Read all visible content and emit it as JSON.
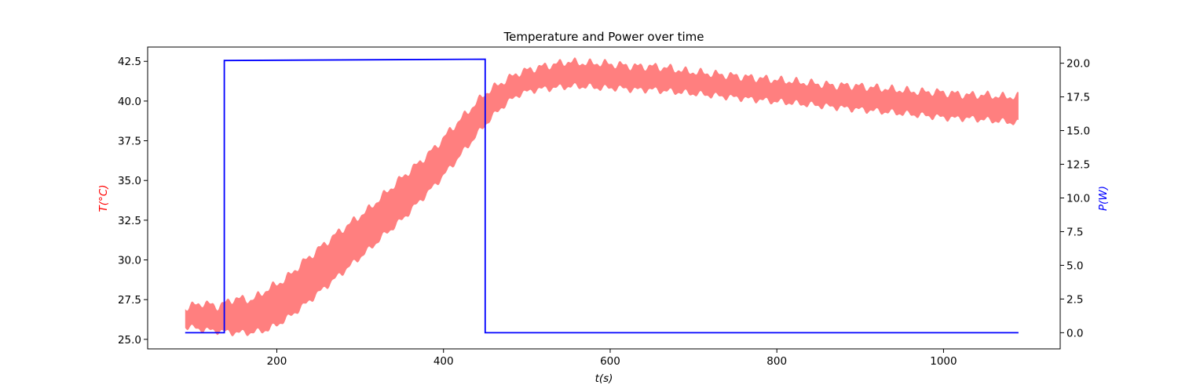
{
  "chart_data": {
    "type": "line",
    "title": "Temperature and Power over time",
    "xlabel": "t(s)",
    "ylabel_left": "T(°C)",
    "ylabel_right": "P(W)",
    "xlim": [
      45,
      1140
    ],
    "ylim_left": [
      24.4,
      43.4
    ],
    "ylim_right": [
      -1.2,
      21.2
    ],
    "x_ticks": [
      200,
      400,
      600,
      800,
      1000
    ],
    "y_left_ticks": [
      "25.0",
      "27.5",
      "30.0",
      "32.5",
      "35.0",
      "37.5",
      "40.0",
      "42.5"
    ],
    "y_right_ticks": [
      "0.0",
      "2.5",
      "5.0",
      "7.5",
      "10.0",
      "12.5",
      "15.0",
      "17.5",
      "20.0"
    ],
    "grid": false,
    "series": [
      {
        "name": "",
        "axis": "left",
        "color": "#ff7f7f",
        "style": "oscillating band",
        "x": [
          90,
          110,
          130,
          150,
          170,
          190,
          210,
          230,
          250,
          270,
          290,
          310,
          330,
          350,
          370,
          390,
          410,
          430,
          450,
          470,
          490,
          510,
          530,
          550,
          570,
          590,
          610,
          630,
          650,
          670,
          690,
          710,
          730,
          750,
          770,
          790,
          810,
          830,
          850,
          870,
          890,
          910,
          930,
          950,
          970,
          990,
          1010,
          1030,
          1050,
          1070,
          1090
        ],
        "upper": [
          27.0,
          27.3,
          27.1,
          27.6,
          27.5,
          28.2,
          28.8,
          29.8,
          30.7,
          31.6,
          32.4,
          33.2,
          34.2,
          35.2,
          36.1,
          37.1,
          38.3,
          39.4,
          40.5,
          41.2,
          41.8,
          42.1,
          42.3,
          42.5,
          42.4,
          42.4,
          42.3,
          42.2,
          42.2,
          42.1,
          41.9,
          41.8,
          41.7,
          41.6,
          41.5,
          41.4,
          41.3,
          41.2,
          41.1,
          41.0,
          41.0,
          40.9,
          40.8,
          40.7,
          40.6,
          40.6,
          40.5,
          40.4,
          40.4,
          40.3,
          40.3
        ],
        "lower": [
          25.8,
          25.6,
          25.5,
          25.4,
          25.4,
          25.6,
          26.2,
          27.0,
          27.9,
          28.8,
          29.7,
          30.6,
          31.6,
          32.5,
          33.6,
          34.7,
          35.9,
          37.2,
          38.5,
          39.6,
          40.4,
          40.7,
          40.8,
          40.9,
          40.9,
          40.8,
          40.8,
          40.7,
          40.7,
          40.6,
          40.5,
          40.4,
          40.3,
          40.2,
          40.1,
          40.0,
          39.9,
          39.8,
          39.7,
          39.6,
          39.5,
          39.4,
          39.3,
          39.2,
          39.1,
          39.0,
          38.9,
          38.9,
          38.8,
          38.7,
          38.6
        ]
      },
      {
        "name": "",
        "axis": "right",
        "color": "#0000ff",
        "style": "step",
        "x": [
          90,
          137,
          137,
          450,
          450,
          1090
        ],
        "y": [
          0.0,
          0.0,
          20.2,
          20.3,
          0.0,
          0.0
        ]
      }
    ]
  }
}
